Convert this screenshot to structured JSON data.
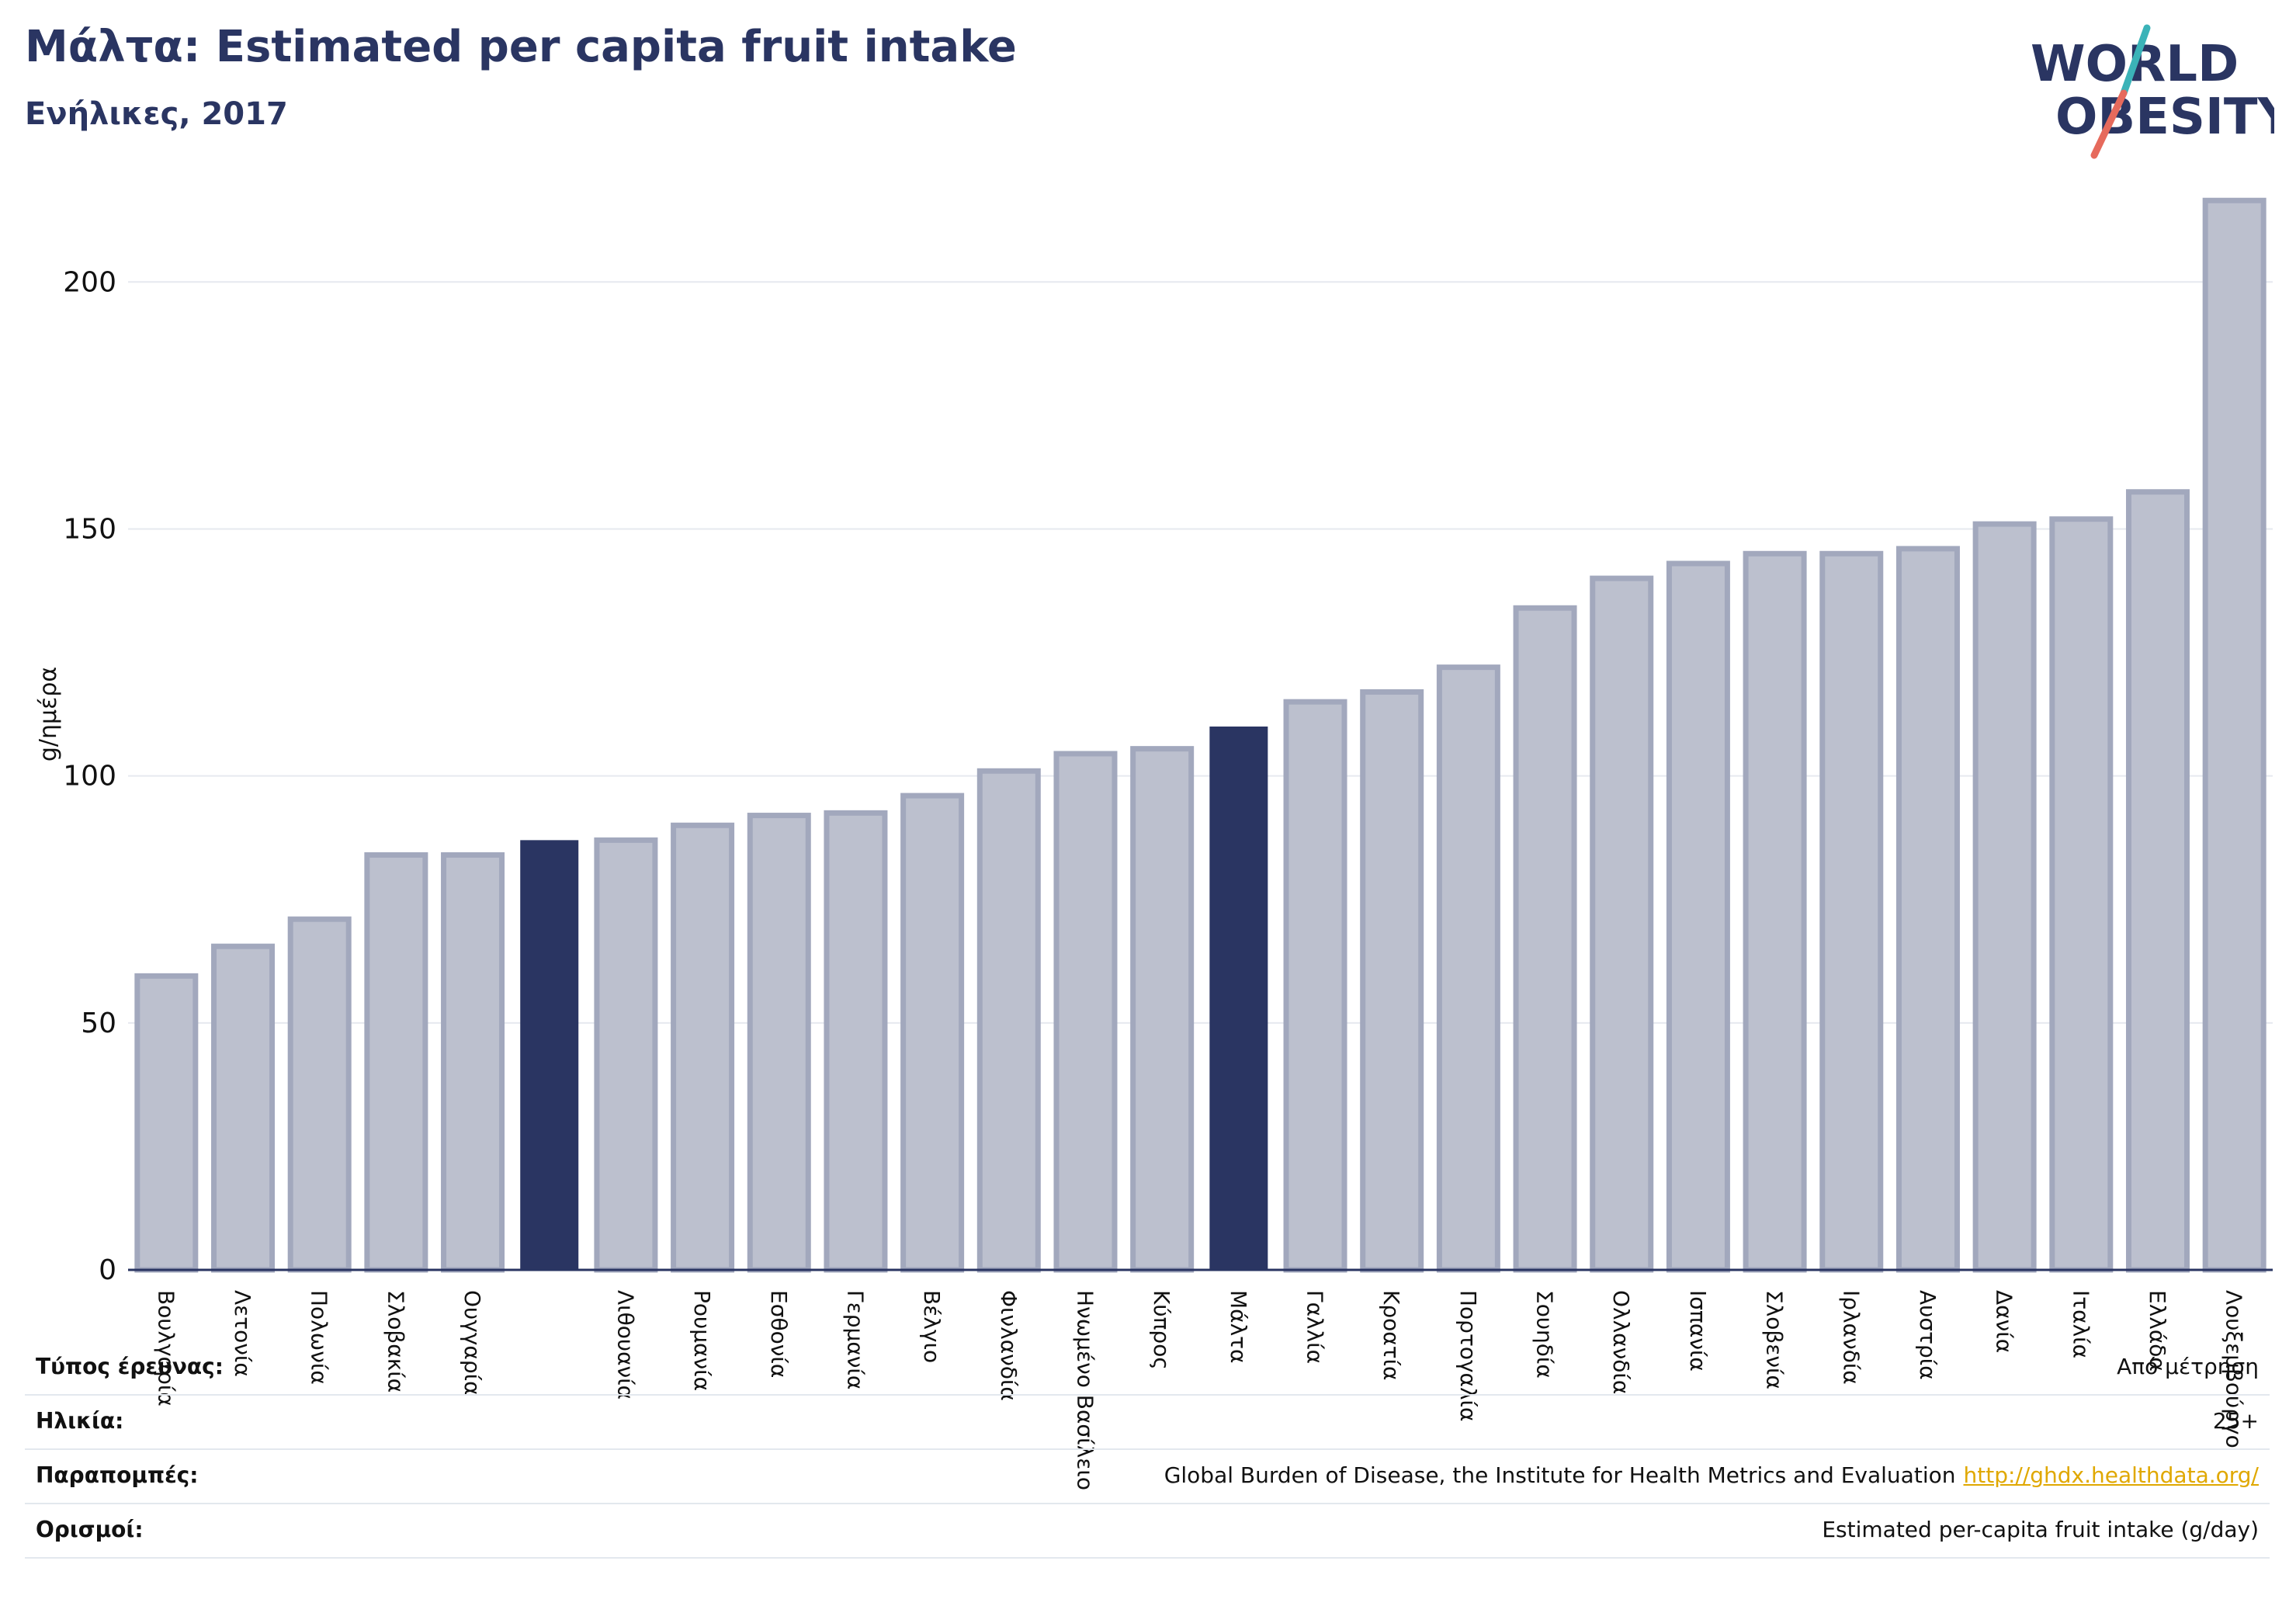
{
  "header": {
    "title": "Μάλτα: Estimated per capita fruit intake",
    "subtitle": "Ενήλικες, 2017"
  },
  "logo": {
    "line1": "WORLD",
    "line2": "OBESITY"
  },
  "colors": {
    "brand": "#2a3562",
    "bar": "#bcc0ce",
    "bar_stroke": "#a2a8bd",
    "highlight": "#2a3562",
    "logo_slash_teal": "#3bb3b8",
    "logo_slash_red": "#e66a5c",
    "link": "#e0a800"
  },
  "chart_data": {
    "type": "bar",
    "ylabel": "g/ημέρα",
    "ylim": [
      0,
      220
    ],
    "yticks": [
      0,
      50,
      100,
      150,
      200
    ],
    "grid": true,
    "categories": [
      "Βουλγαρία",
      "Λετονία",
      "Πολωνία",
      "Σλοβακία",
      "Ουγγαρία",
      "",
      "Λιθουανία",
      "Ρουμανία",
      "Εσθονία",
      "Γερμανία",
      "Βέλγιο",
      "Φινλανδία",
      "Ηνωμένο Βασίλειο",
      "Κύπρος",
      "Μάλτα",
      "Γαλλία",
      "Κροατία",
      "Πορτογαλία",
      "Σουηδία",
      "Ολλανδία",
      "Ισπανία",
      "Σλοβενία",
      "Ιρλανδία",
      "Αυστρία",
      "Δανία",
      "Ιταλία",
      "Ελλάδα",
      "Λουξεμβούργο"
    ],
    "values": [
      59.5,
      65.5,
      71,
      84,
      84,
      87,
      87,
      90,
      92,
      92.5,
      96,
      101,
      104.5,
      105.5,
      110,
      115,
      117,
      122,
      134,
      140,
      143,
      145,
      145,
      146,
      151,
      152,
      157.5,
      216.5
    ],
    "highlighted": [
      5,
      14
    ]
  },
  "info": [
    {
      "label": "Τύπος έρευνας:",
      "value": "Από μέτρηση",
      "link": ""
    },
    {
      "label": "Ηλικία:",
      "value": "25+",
      "link": ""
    },
    {
      "label": "Παραπομπές:",
      "value": "Global Burden of Disease, the Institute for Health Metrics and Evaluation",
      "link": "http://ghdx.healthdata.org/"
    },
    {
      "label": "Ορισμοί:",
      "value": "Estimated per-capita fruit intake (g/day)",
      "link": ""
    }
  ]
}
